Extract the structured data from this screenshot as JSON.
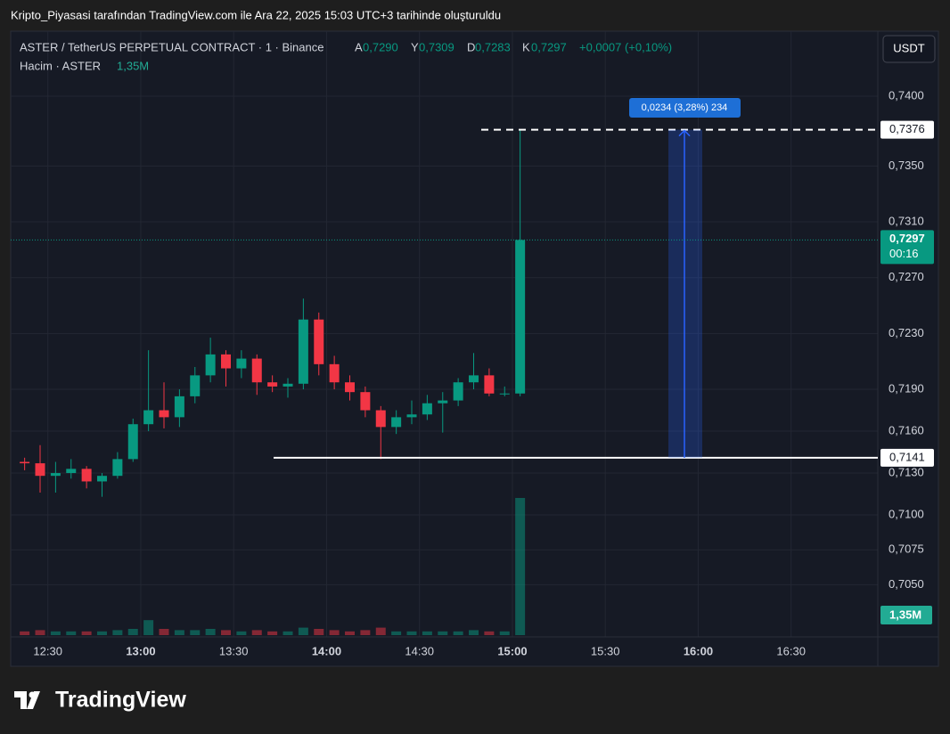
{
  "header": {
    "caption": "Kripto_Piyasasi tarafından TradingView.com ile Ara 22, 2025 15:03 UTC+3 tarihinde oluşturuldu"
  },
  "chart_data": {
    "type": "candlestick",
    "legend": {
      "symbol": "ASTER / TetherUS PERPETUAL CONTRACT · 1 · Binance",
      "open_label": "A",
      "open": "0,7290",
      "high_label": "Y",
      "high": "0,7309",
      "low_label": "D",
      "low": "0,7283",
      "close_label": "K",
      "close": "0,7297",
      "change": "+0,0007 (+0,10%)",
      "volume_title": "Hacim · ASTER",
      "volume": "1,35M"
    },
    "currency": "USDT",
    "up_color": "#089981",
    "down_color": "#f23645",
    "xlim": [
      "12:18",
      "16:58"
    ],
    "xticks": [
      "12:30",
      "13:00",
      "13:30",
      "14:00",
      "14:30",
      "15:00",
      "15:30",
      "16:00",
      "16:30"
    ],
    "ylim": [
      0.70126,
      0.74466
    ],
    "yticks": [
      {
        "value": 0.74,
        "label": "0,7400"
      },
      {
        "value": 0.735,
        "label": "0,7350"
      },
      {
        "value": 0.731,
        "label": "0,7310"
      },
      {
        "value": 0.727,
        "label": "0,7270"
      },
      {
        "value": 0.723,
        "label": "0,7230"
      },
      {
        "value": 0.719,
        "label": "0,7190"
      },
      {
        "value": 0.716,
        "label": "0,7160"
      },
      {
        "value": 0.713,
        "label": "0,7130"
      },
      {
        "value": 0.71,
        "label": "0,7100"
      },
      {
        "value": 0.7075,
        "label": "0,7075"
      },
      {
        "value": 0.705,
        "label": "0,7050"
      }
    ],
    "grid": true,
    "vlim": [
      0,
      12
    ],
    "candles": [
      {
        "time": "12:20",
        "open": 0.7138,
        "high": 0.7141,
        "low": 0.7132,
        "close": 0.7137,
        "volume": 0.3
      },
      {
        "time": "12:25",
        "open": 0.7137,
        "high": 0.715,
        "low": 0.7116,
        "close": 0.7128,
        "volume": 0.4
      },
      {
        "time": "12:30",
        "open": 0.7128,
        "high": 0.7138,
        "low": 0.7116,
        "close": 0.713,
        "volume": 0.3
      },
      {
        "time": "12:35",
        "open": 0.713,
        "high": 0.714,
        "low": 0.7126,
        "close": 0.7133,
        "volume": 0.3
      },
      {
        "time": "12:40",
        "open": 0.7133,
        "high": 0.7135,
        "low": 0.7119,
        "close": 0.7124,
        "volume": 0.3
      },
      {
        "time": "12:45",
        "open": 0.7124,
        "high": 0.713,
        "low": 0.7113,
        "close": 0.7128,
        "volume": 0.3
      },
      {
        "time": "12:50",
        "open": 0.7128,
        "high": 0.7145,
        "low": 0.7126,
        "close": 0.714,
        "volume": 0.4
      },
      {
        "time": "12:55",
        "open": 0.714,
        "high": 0.7169,
        "low": 0.7138,
        "close": 0.7165,
        "volume": 0.5
      },
      {
        "time": "13:00",
        "open": 0.7165,
        "high": 0.7218,
        "low": 0.716,
        "close": 0.7175,
        "volume": 1.2
      },
      {
        "time": "13:05",
        "open": 0.7175,
        "high": 0.7195,
        "low": 0.7162,
        "close": 0.717,
        "volume": 0.5
      },
      {
        "time": "13:10",
        "open": 0.717,
        "high": 0.719,
        "low": 0.7163,
        "close": 0.7185,
        "volume": 0.4
      },
      {
        "time": "13:15",
        "open": 0.7185,
        "high": 0.7206,
        "low": 0.718,
        "close": 0.72,
        "volume": 0.4
      },
      {
        "time": "13:20",
        "open": 0.72,
        "high": 0.7227,
        "low": 0.7195,
        "close": 0.7215,
        "volume": 0.5
      },
      {
        "time": "13:25",
        "open": 0.7215,
        "high": 0.7218,
        "low": 0.7192,
        "close": 0.7205,
        "volume": 0.4
      },
      {
        "time": "13:30",
        "open": 0.7205,
        "high": 0.7218,
        "low": 0.7198,
        "close": 0.7212,
        "volume": 0.3
      },
      {
        "time": "13:35",
        "open": 0.7212,
        "high": 0.7215,
        "low": 0.7186,
        "close": 0.7195,
        "volume": 0.4
      },
      {
        "time": "13:40",
        "open": 0.7195,
        "high": 0.72,
        "low": 0.7188,
        "close": 0.7192,
        "volume": 0.3
      },
      {
        "time": "13:45",
        "open": 0.7192,
        "high": 0.7198,
        "low": 0.7184,
        "close": 0.7194,
        "volume": 0.3
      },
      {
        "time": "13:50",
        "open": 0.7194,
        "high": 0.7255,
        "low": 0.719,
        "close": 0.724,
        "volume": 0.6
      },
      {
        "time": "13:55",
        "open": 0.724,
        "high": 0.7245,
        "low": 0.72,
        "close": 0.7208,
        "volume": 0.5
      },
      {
        "time": "14:00",
        "open": 0.7208,
        "high": 0.7214,
        "low": 0.719,
        "close": 0.7195,
        "volume": 0.4
      },
      {
        "time": "14:05",
        "open": 0.7195,
        "high": 0.72,
        "low": 0.7182,
        "close": 0.7188,
        "volume": 0.3
      },
      {
        "time": "14:10",
        "open": 0.7188,
        "high": 0.7192,
        "low": 0.717,
        "close": 0.7175,
        "volume": 0.4
      },
      {
        "time": "14:15",
        "open": 0.7175,
        "high": 0.7178,
        "low": 0.714,
        "close": 0.7163,
        "volume": 0.6
      },
      {
        "time": "14:20",
        "open": 0.7163,
        "high": 0.7175,
        "low": 0.7158,
        "close": 0.717,
        "volume": 0.3
      },
      {
        "time": "14:25",
        "open": 0.717,
        "high": 0.7182,
        "low": 0.7165,
        "close": 0.7172,
        "volume": 0.3
      },
      {
        "time": "14:30",
        "open": 0.7172,
        "high": 0.7186,
        "low": 0.7168,
        "close": 0.718,
        "volume": 0.3
      },
      {
        "time": "14:35",
        "open": 0.718,
        "high": 0.7188,
        "low": 0.7159,
        "close": 0.7182,
        "volume": 0.3
      },
      {
        "time": "14:40",
        "open": 0.7182,
        "high": 0.7198,
        "low": 0.7178,
        "close": 0.7195,
        "volume": 0.3
      },
      {
        "time": "14:45",
        "open": 0.7195,
        "high": 0.7216,
        "low": 0.719,
        "close": 0.72,
        "volume": 0.4
      },
      {
        "time": "14:50",
        "open": 0.72,
        "high": 0.7205,
        "low": 0.7185,
        "close": 0.7187,
        "volume": 0.3
      },
      {
        "time": "14:55",
        "open": 0.7187,
        "high": 0.7192,
        "low": 0.7185,
        "close": 0.7187,
        "volume": 0.3
      },
      {
        "time": "15:00",
        "open": 0.7187,
        "high": 0.7376,
        "low": 0.7185,
        "close": 0.7297,
        "volume": 11
      }
    ],
    "last_price": {
      "value": 0.7297,
      "label": "0,7297"
    },
    "countdown": "00:16",
    "volume_label": "1,35M",
    "lines": [
      {
        "value": 0.7376,
        "label": "0,7376",
        "style": "dashed"
      },
      {
        "value": 0.7141,
        "label": "0,7141",
        "style": "solid"
      }
    ],
    "measure_label": "0,0234 (3,28%) 234"
  },
  "footer": {
    "brand": "TradingView"
  }
}
